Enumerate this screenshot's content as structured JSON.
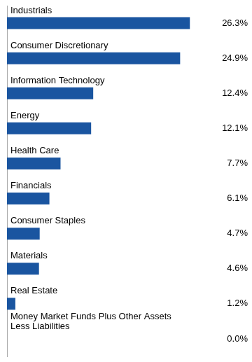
{
  "chart_data": {
    "type": "bar",
    "orientation": "horizontal",
    "categories": [
      "Industrials",
      "Consumer Discretionary",
      "Information Technology",
      "Energy",
      "Health Care",
      "Financials",
      "Consumer Staples",
      "Materials",
      "Real Estate",
      "Money Market Funds Plus Other Assets\nLess Liabilities"
    ],
    "values": [
      26.3,
      24.9,
      12.4,
      12.1,
      7.7,
      6.1,
      4.7,
      4.6,
      1.2,
      0.0
    ],
    "value_labels": [
      "26.3%",
      "24.9%",
      "12.4%",
      "12.1%",
      "7.7%",
      "6.1%",
      "4.7%",
      "4.6%",
      "1.2%",
      "0.0%"
    ],
    "color": "#1A55A0",
    "xlim": [
      0,
      30
    ],
    "grid": false,
    "data_labels": true,
    "tick_labels": false
  }
}
